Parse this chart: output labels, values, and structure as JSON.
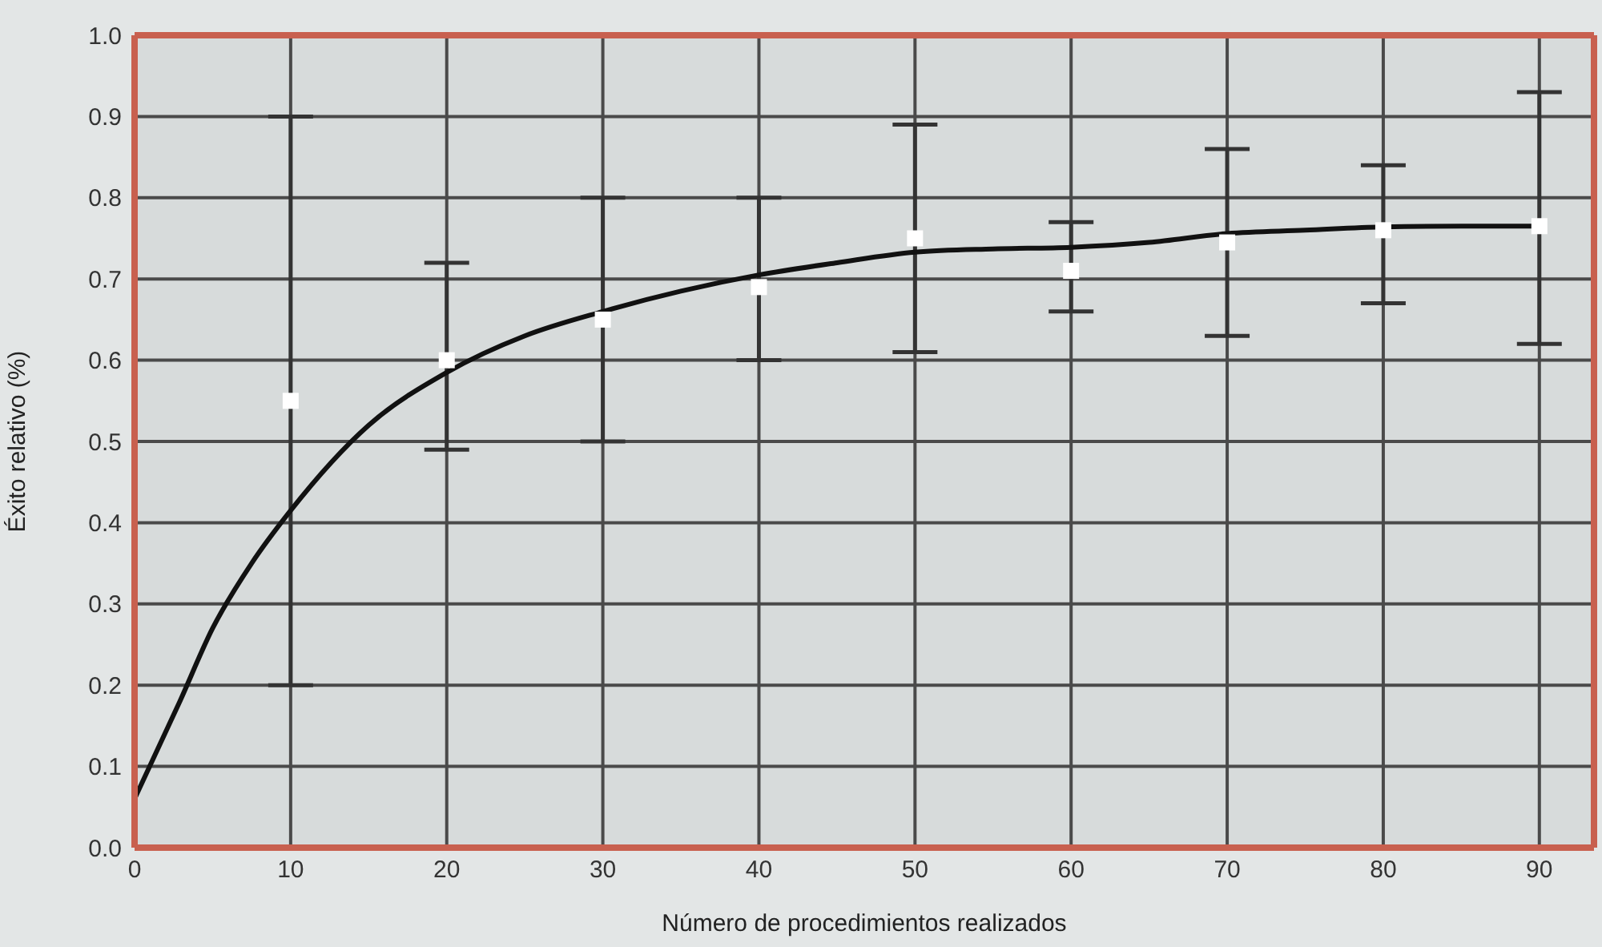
{
  "chart_data": {
    "type": "scatter",
    "xlabel": "Número de procedimientos realizados",
    "ylabel": "Éxito relativo (%)",
    "xlim": [
      0,
      93.5
    ],
    "xticks": [
      0,
      10,
      20,
      30,
      40,
      50,
      60,
      70,
      80,
      90
    ],
    "ylim": [
      0,
      1.0
    ],
    "yticks": [
      {
        "value": 0,
        "label": "0.0"
      },
      0.1,
      0.2,
      0.3,
      0.4,
      0.5,
      0.6,
      0.7,
      0.8,
      0.9,
      {
        "value": 1,
        "label": "1.0"
      }
    ],
    "grid": true,
    "series": [
      {
        "marker": "square",
        "color": "#ffffff",
        "x": [
          10,
          20,
          30,
          40,
          50,
          60,
          70,
          80,
          90
        ],
        "values": [
          0.55,
          0.6,
          0.65,
          0.69,
          0.75,
          0.71,
          0.745,
          0.76,
          0.765
        ],
        "errors": [
          [
            0.2,
            0.9
          ],
          [
            0.49,
            0.72
          ],
          [
            0.5,
            0.8
          ],
          [
            0.6,
            0.8
          ],
          [
            0.61,
            0.89
          ],
          [
            0.66,
            0.77
          ],
          [
            0.63,
            0.86
          ],
          [
            0.67,
            0.84
          ],
          [
            0.62,
            0.93
          ]
        ]
      },
      {
        "type": "line",
        "marker": "none",
        "color": "#111111",
        "x": [
          0,
          2.9,
          5,
          7.5,
          10,
          15,
          20,
          25,
          30,
          35,
          40,
          45,
          50,
          55,
          60,
          65,
          70,
          75,
          80,
          85,
          90
        ],
        "values": [
          0.06,
          0.18,
          0.27,
          0.35,
          0.415,
          0.52,
          0.585,
          0.63,
          0.66,
          0.685,
          0.705,
          0.72,
          0.733,
          0.737,
          0.739,
          0.745,
          0.756,
          0.76,
          0.764,
          0.765,
          0.765
        ]
      }
    ]
  }
}
